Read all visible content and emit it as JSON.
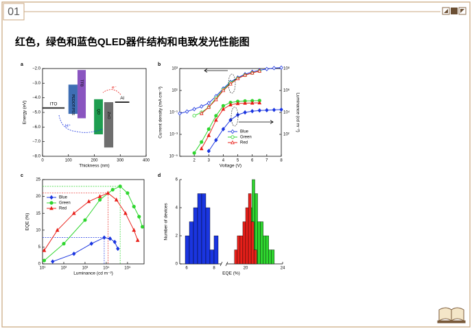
{
  "header": {
    "number": "01",
    "title": "红色，绿色和蓝色QLED器件结构和电致发光性能图"
  },
  "chart_data": [
    {
      "type": "energy_diagram",
      "label": "a",
      "xlabel": "Thickness (nm)",
      "ylabel": "Energy (eV)",
      "xlim": [
        0,
        400
      ],
      "xticks": [
        0,
        100,
        200,
        300,
        400
      ],
      "ylim": [
        -8,
        -2
      ],
      "yticks": [
        {
          "value": -2,
          "label": "−2.0"
        },
        {
          "value": -3,
          "label": "−3.0"
        },
        {
          "value": -4,
          "label": "−4.0"
        },
        {
          "value": -5,
          "label": "−5.0"
        },
        {
          "value": -6,
          "label": "−6.0"
        },
        {
          "value": -7,
          "label": "−7.0"
        },
        {
          "value": -8,
          "label": "−8.0"
        }
      ],
      "layers": [
        {
          "name": "ITO",
          "x": [
            0,
            85
          ],
          "level": -4.7,
          "color": "#000000"
        },
        {
          "name": "PEDOT:PSS",
          "x": [
            100,
            135
          ],
          "top": -3.1,
          "bottom": -5.1,
          "color": "#3e6eb4"
        },
        {
          "name": "TFB",
          "x": [
            135,
            167
          ],
          "top": -2.1,
          "bottom": -5.4,
          "color": "#8a55c0"
        },
        {
          "name": "QD",
          "x": [
            199,
            233
          ],
          "top": -4.1,
          "bottom": -6.5,
          "color": "#1e9e50"
        },
        {
          "name": "ZnO",
          "x": [
            238,
            273
          ],
          "top": -4.3,
          "bottom": -7.4,
          "color": "#6e6e6e"
        },
        {
          "name": "Al",
          "x": [
            280,
            335
          ],
          "level": -4.3,
          "color": "#000000"
        }
      ],
      "annotations": [
        "H⁺",
        "e⁻"
      ]
    },
    {
      "type": "line_dual_log",
      "label": "b",
      "xlabel": "Voltage (V)",
      "ylabel": "Current density (mA cm⁻²)",
      "y2label": "Luminance (cd m⁻²)",
      "x": [
        1,
        1.5,
        2,
        2.5,
        3,
        3.5,
        4,
        4.5,
        5,
        5.5,
        6,
        6.5,
        7,
        7.5,
        8
      ],
      "xlim": [
        1,
        8
      ],
      "xticks": [
        2,
        3,
        4,
        5,
        6,
        7,
        8
      ],
      "ylim": [
        1e-05,
        1000
      ],
      "yticks": [
        {
          "value": 1e-05,
          "label": "10⁻⁵"
        },
        {
          "value": 0.001,
          "label": "10⁻³"
        },
        {
          "value": 0.1,
          "label": "10⁻¹"
        },
        {
          "value": 10,
          "label": "10¹"
        },
        {
          "value": 1000,
          "label": "10³"
        }
      ],
      "y2lim": [
        1,
        100000000
      ],
      "y2ticks": [
        {
          "value": 100,
          "label": "10²"
        },
        {
          "value": 10000,
          "label": "10⁴"
        },
        {
          "value": 1000000,
          "label": "10⁶"
        },
        {
          "value": 100000000,
          "label": "10⁸"
        }
      ],
      "log": true,
      "legend": "lower right",
      "series": [
        {
          "name": "Blue",
          "color": "#1a35e0",
          "marker": "diamond",
          "values": [
            0.08,
            0.12,
            0.2,
            0.35,
            0.7,
            3,
            15,
            60,
            150,
            300,
            500,
            700,
            900,
            1100,
            1200
          ],
          "luminance": [
            null,
            null,
            null,
            null,
            3,
            30,
            300,
            2000,
            6000,
            10000,
            13000,
            15000,
            16000,
            17000,
            18000
          ]
        },
        {
          "name": "Green",
          "color": "#2fd62f",
          "marker": "circle",
          "values": [
            null,
            null,
            0.05,
            0.1,
            0.3,
            2,
            12,
            50,
            130,
            250,
            400,
            600,
            null,
            null,
            null
          ],
          "luminance": [
            null,
            null,
            2,
            20,
            300,
            5000,
            40000,
            80000,
            100000,
            110000,
            115000,
            120000,
            null,
            null,
            null
          ]
        },
        {
          "name": "Red",
          "color": "#e8201a",
          "marker": "triangle",
          "values": [
            null,
            null,
            null,
            0.08,
            0.3,
            1.5,
            10,
            40,
            120,
            250,
            400,
            600,
            null,
            null,
            null
          ],
          "luminance": [
            null,
            null,
            null,
            5,
            80,
            2000,
            20000,
            50000,
            65000,
            70000,
            72000,
            75000,
            null,
            null,
            null
          ]
        }
      ]
    },
    {
      "type": "line_logx",
      "label": "c",
      "xlabel": "Luminance (cd m⁻²)",
      "ylabel": "EQE (%)",
      "xlim": [
        10,
        600000
      ],
      "xticks": [
        {
          "value": 10,
          "label": "10¹"
        },
        {
          "value": 100,
          "label": "10²"
        },
        {
          "value": 1000,
          "label": "10³"
        },
        {
          "value": 10000,
          "label": "10⁴"
        },
        {
          "value": 100000,
          "label": "10⁵"
        }
      ],
      "ylim": [
        0,
        25
      ],
      "yticks": [
        0,
        5,
        10,
        15,
        20,
        25
      ],
      "legend": "upper left",
      "series": [
        {
          "name": "Blue",
          "color": "#1a35e0",
          "marker": "diamond",
          "x": [
            30,
            300,
            2000,
            8000,
            15000,
            25000,
            35000
          ],
          "values": [
            0.7,
            3,
            6,
            7.8,
            7.5,
            6.5,
            4.5
          ]
        },
        {
          "name": "Green",
          "color": "#2fd62f",
          "marker": "circle",
          "x": [
            12,
            100,
            1000,
            5000,
            20000,
            45000,
            100000,
            200000,
            350000,
            500000
          ],
          "values": [
            1,
            6,
            13,
            19,
            22,
            23,
            21,
            17,
            14,
            11
          ]
        },
        {
          "name": "Red",
          "color": "#e8201a",
          "marker": "triangle",
          "x": [
            12,
            50,
            300,
            1500,
            5000,
            12000,
            30000,
            80000,
            200000,
            300000
          ],
          "values": [
            4,
            10,
            15,
            18.5,
            20,
            21,
            19,
            15,
            10,
            7
          ]
        }
      ]
    },
    {
      "type": "histogram",
      "label": "d",
      "xlabel": "EQE (%)",
      "ylabel": "Number of devices",
      "xlim": [
        5.5,
        24
      ],
      "xbreak": [
        8.5,
        18
      ],
      "xticks": [
        6,
        8,
        20,
        24
      ],
      "ylim": [
        0,
        6
      ],
      "yticks": [
        0,
        2,
        4,
        6
      ],
      "series": [
        {
          "color": "#1a35e0",
          "bins": [
            5.9,
            6.2,
            6.5,
            6.8,
            7.1,
            7.4,
            7.7,
            8.0,
            8.3
          ],
          "counts": [
            2,
            3,
            4,
            5,
            5,
            4,
            1,
            2
          ]
        },
        {
          "color": "#2fd62f",
          "bins": [
            19.8,
            20.1,
            20.4,
            20.7,
            21.0,
            21.3,
            21.6,
            21.9,
            22.2,
            22.5,
            22.8,
            23.1
          ],
          "counts": [
            1,
            2,
            4,
            6,
            5,
            3,
            3,
            2,
            2,
            1,
            1
          ]
        },
        {
          "color": "#e8201a",
          "bins": [
            18.8,
            19.1,
            19.4,
            19.7,
            20.0,
            20.3,
            20.6,
            20.9,
            21.2
          ],
          "counts": [
            1,
            2,
            2,
            3,
            4,
            5,
            3,
            1
          ]
        }
      ]
    }
  ]
}
